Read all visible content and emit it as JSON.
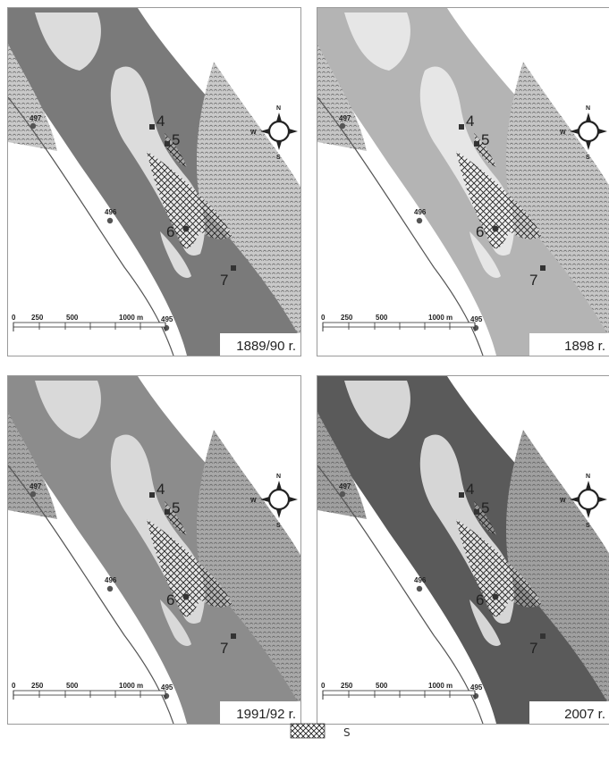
{
  "panels": [
    {
      "year_label": "1889/90 r.",
      "style": {
        "water": "#7a7a7a",
        "land": "#dcdcdc",
        "bg": "#ffffff",
        "bar": "#c9c9c9"
      }
    },
    {
      "year_label": "1898 r.",
      "style": {
        "water": "#b4b4b4",
        "land": "#e6e6e6",
        "bg": "#ffffff",
        "bar": "#c6c6c6"
      }
    },
    {
      "year_label": "1991/92 r.",
      "style": {
        "water": "#8c8c8c",
        "land": "#d9d9d9",
        "bg": "#ffffff",
        "bar": "#a8a8a8"
      }
    },
    {
      "year_label": "2007 r.",
      "style": {
        "water": "#5a5a5a",
        "land": "#d6d6d6",
        "bg": "#ffffff",
        "bar": "#a0a0a0"
      }
    }
  ],
  "kilometer_markers": [
    "497",
    "496",
    "495"
  ],
  "station_labels": [
    "4",
    "5",
    "6",
    "7"
  ],
  "compass": {
    "n": "N",
    "s": "S",
    "e": "E",
    "w": "W"
  },
  "scale_bar": {
    "ticks": [
      "0",
      "250",
      "500",
      "1000 m"
    ]
  },
  "legend": {
    "label": "S"
  }
}
